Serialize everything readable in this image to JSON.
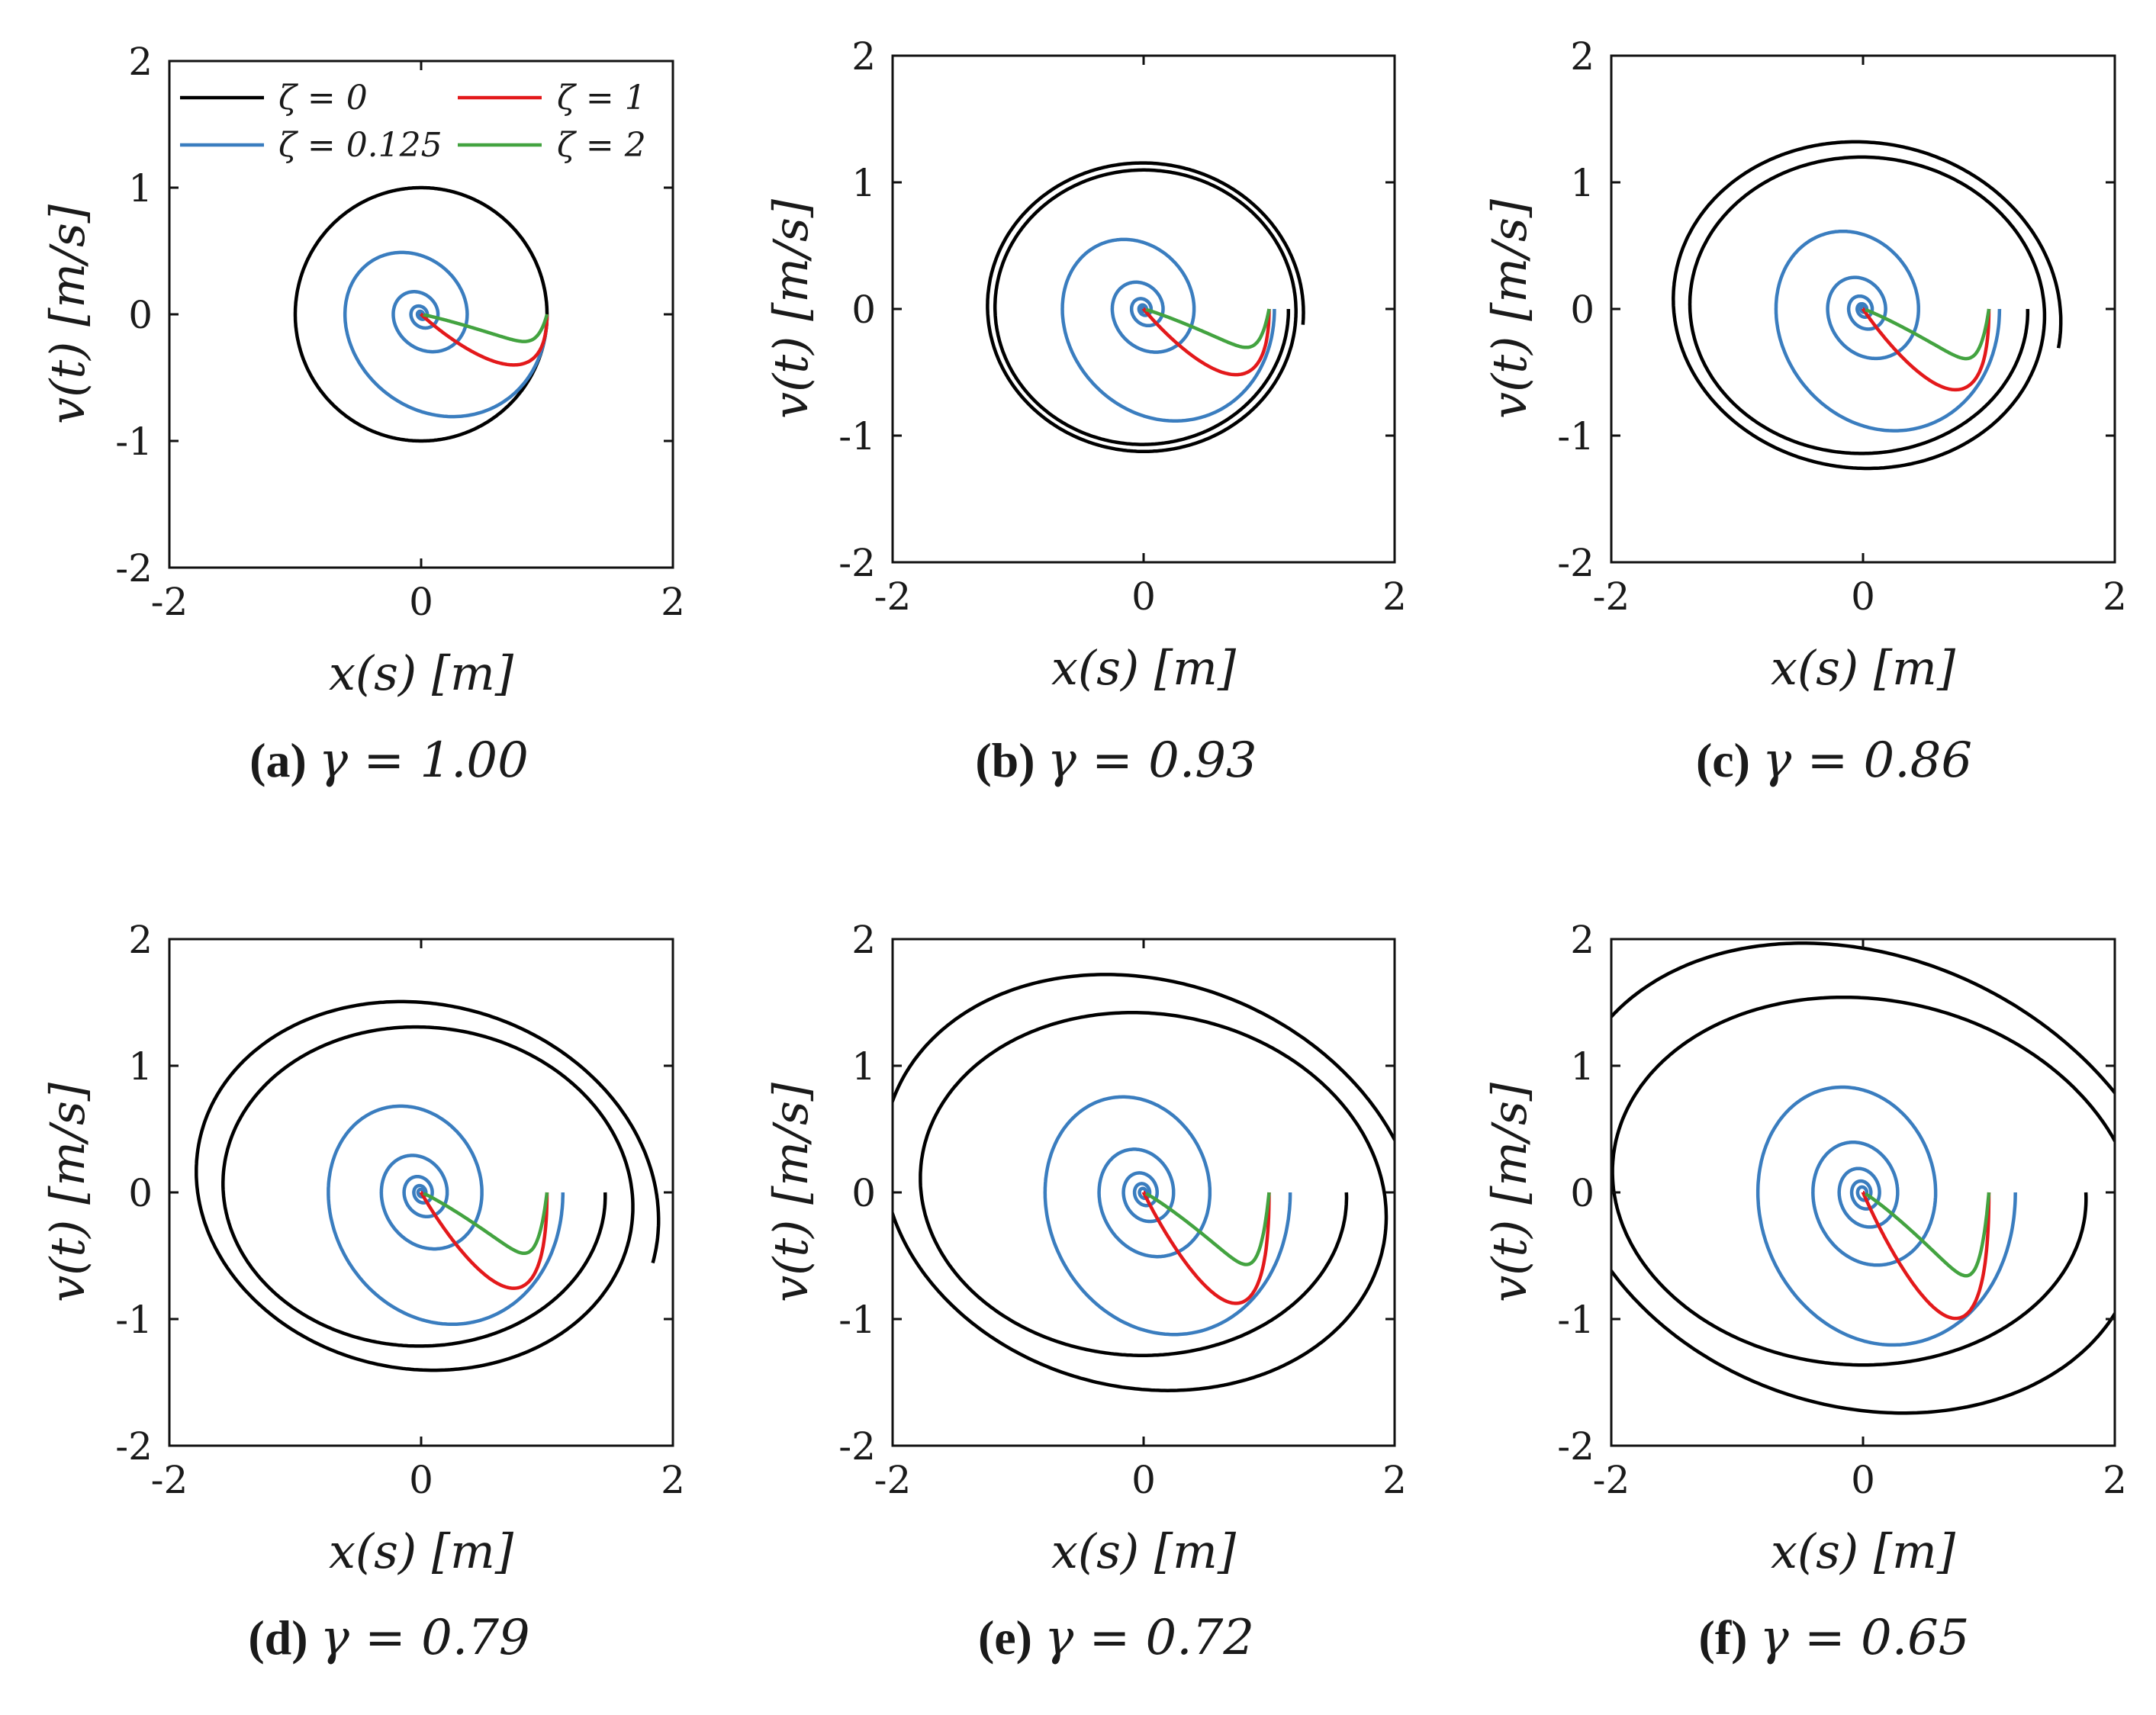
{
  "chart_data": {
    "type": "line",
    "legend": {
      "placement": "top (panel a)",
      "entries": [
        {
          "label": "ζ = 0",
          "color": "#000000"
        },
        {
          "label": "ζ = 1",
          "color": "#e3191b"
        },
        {
          "label": "ζ = 0.125",
          "color": "#3a7dbf"
        },
        {
          "label": "ζ = 2",
          "color": "#43a340"
        }
      ]
    },
    "xlabel": "x(s) [m]",
    "ylabel": "v(t) [m/s]",
    "xlim": [
      -2,
      2
    ],
    "ylim": [
      -2,
      2
    ],
    "xticks": [
      "-2",
      "0",
      "2"
    ],
    "yticks": [
      "-2",
      "-1",
      "0",
      "1",
      "2"
    ],
    "description_series": [
      "ζ = 0",
      "ζ = 0.125",
      "ζ = 1",
      "ζ = 2"
    ],
    "panels": [
      {
        "id": "a",
        "caption_label": "(a)",
        "caption_math": "γ = 1.00",
        "gamma": 1.0
      },
      {
        "id": "b",
        "caption_label": "(b)",
        "caption_math": "γ = 0.93",
        "gamma": 0.93
      },
      {
        "id": "c",
        "caption_label": "(c)",
        "caption_math": "γ = 0.86",
        "gamma": 0.86
      },
      {
        "id": "d",
        "caption_label": "(d)",
        "caption_math": "γ = 0.79",
        "gamma": 0.79
      },
      {
        "id": "e",
        "caption_label": "(e)",
        "caption_math": "γ = 0.72",
        "gamma": 0.72
      },
      {
        "id": "f",
        "caption_label": "(f)",
        "caption_math": "γ = 0.65",
        "gamma": 0.65
      }
    ]
  }
}
